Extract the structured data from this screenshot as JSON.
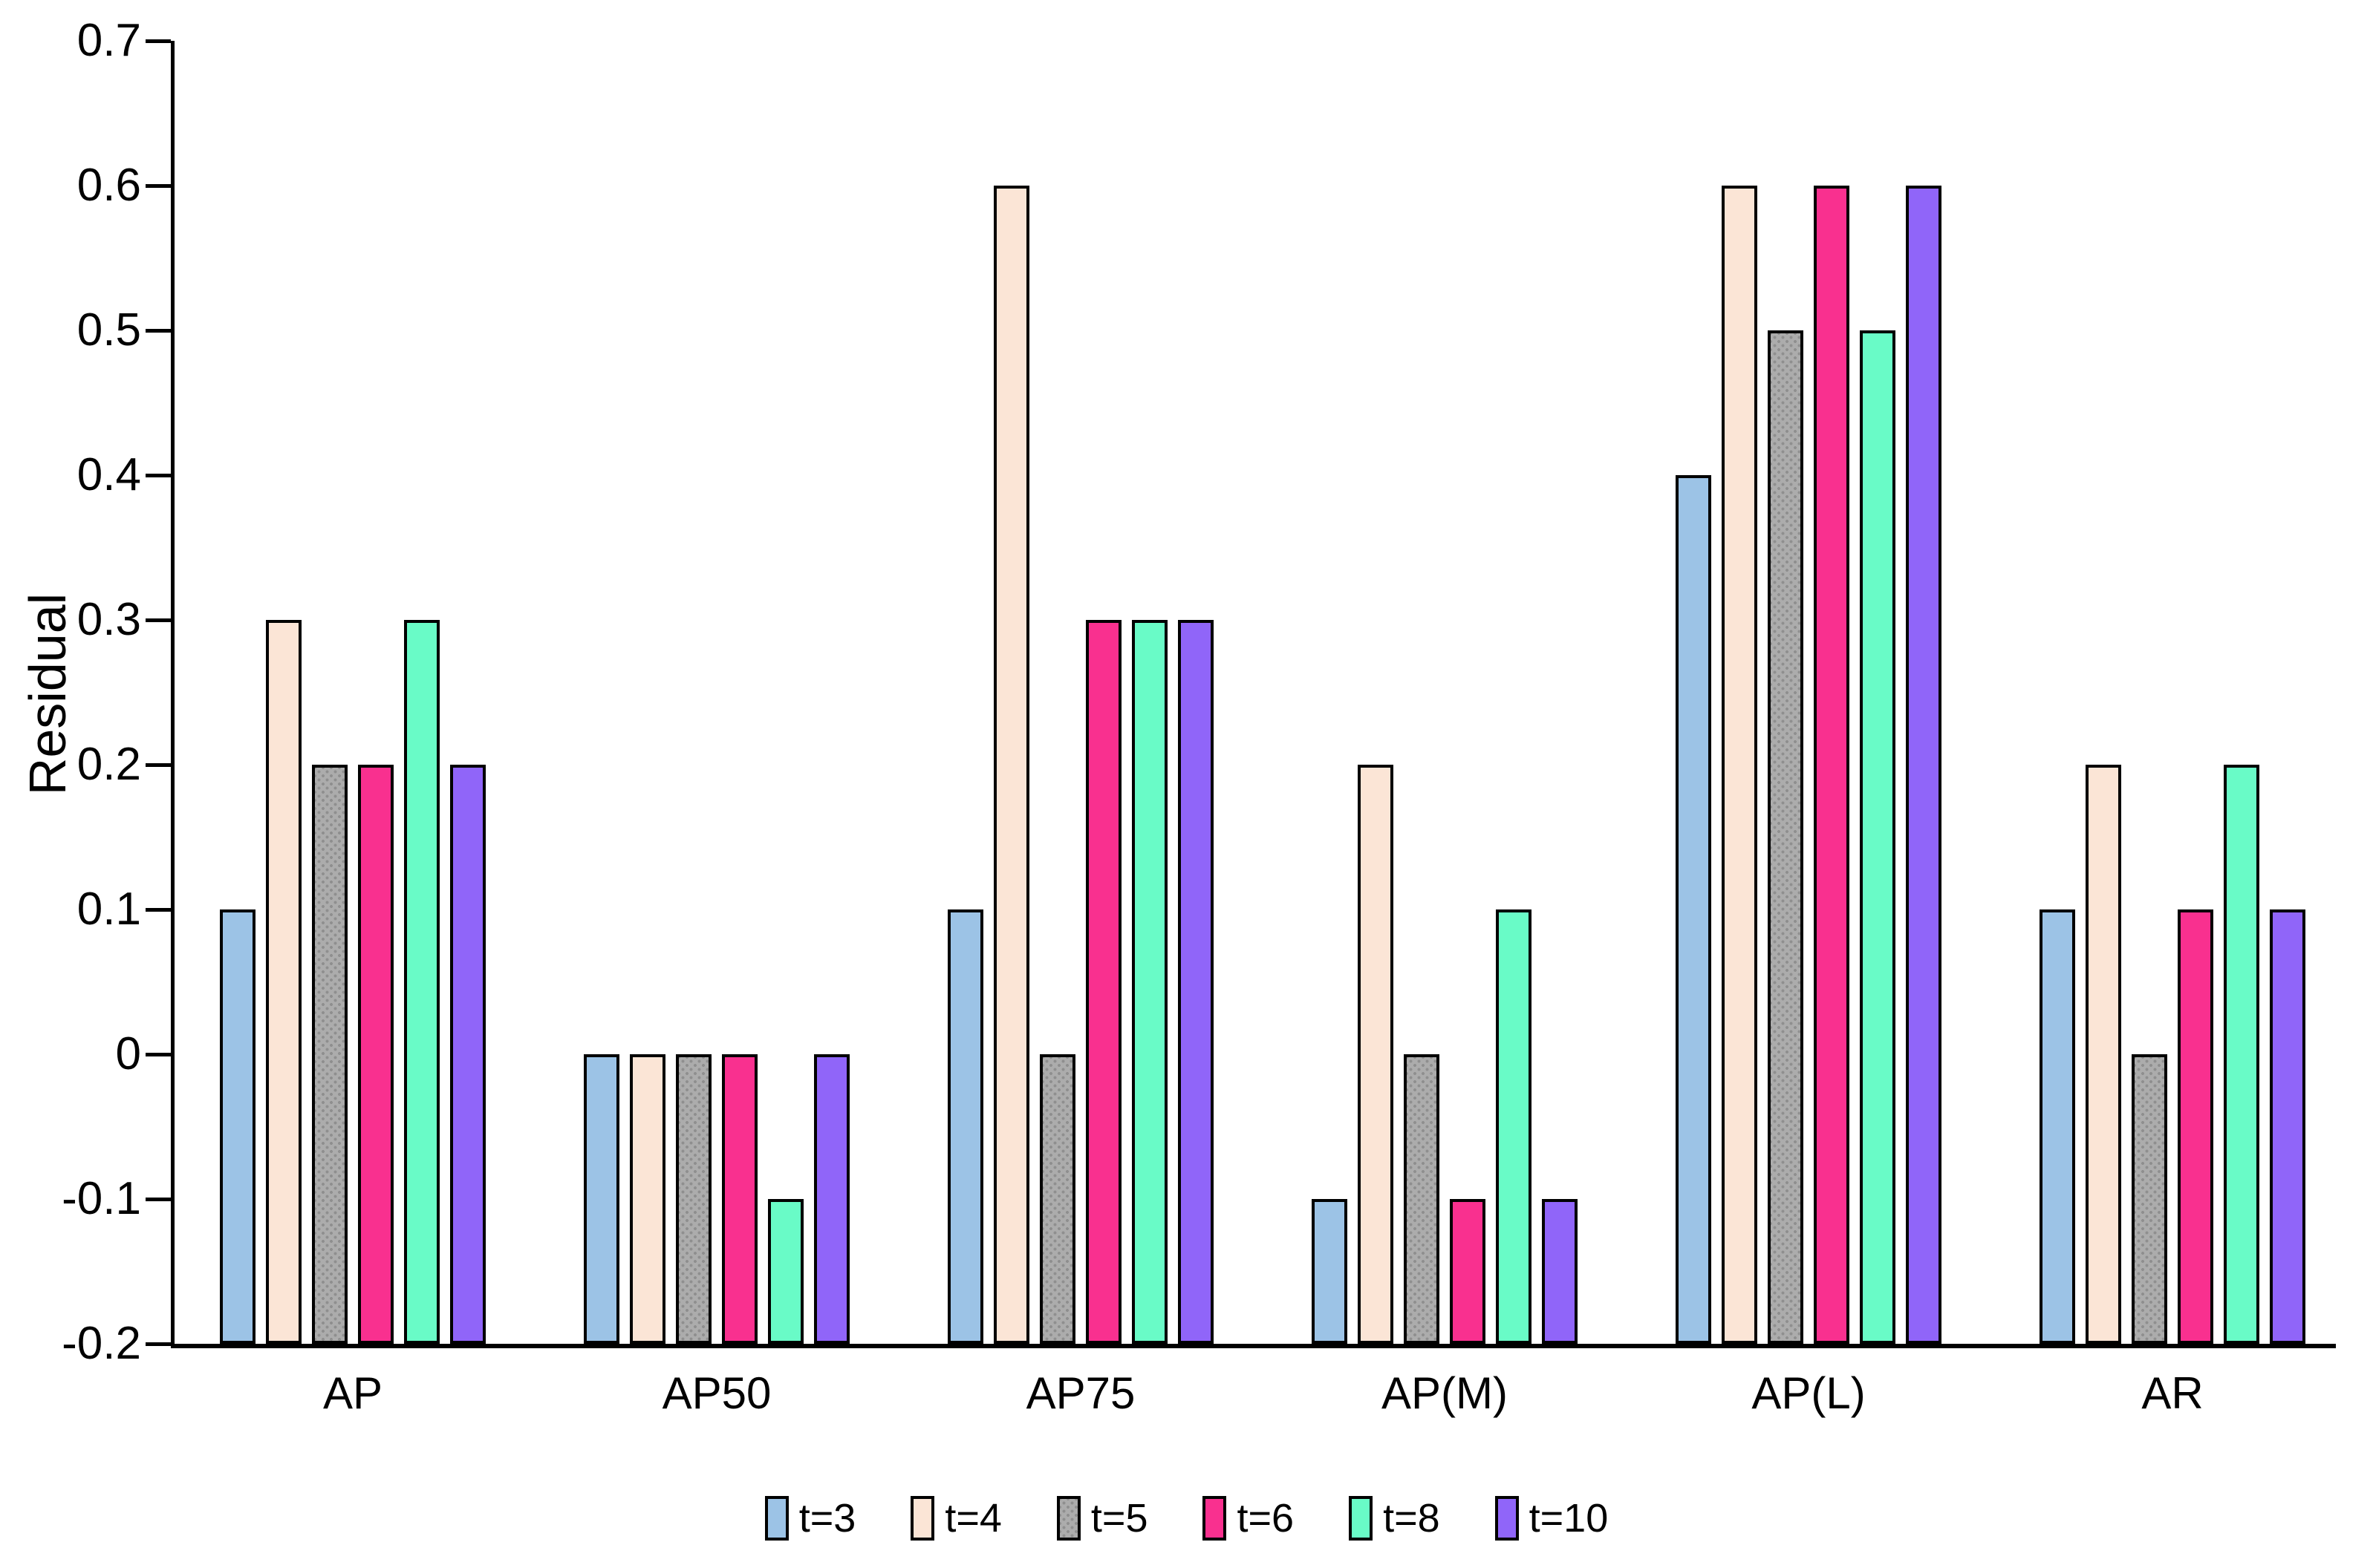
{
  "figure": {
    "background": "#FFFFFF",
    "axis_color": "#000000",
    "bar_border_color": "#000000"
  },
  "chart_data": {
    "type": "bar",
    "title": "",
    "ylabel": "Residual",
    "xlabel": "",
    "categories": [
      "AP",
      "AP50",
      "AP75",
      "AP(M)",
      "AP(L)",
      "AR"
    ],
    "series": [
      {
        "name": "t=3",
        "color": "#9CC3E6",
        "pattern": "solid",
        "values": [
          0.1,
          0,
          0.1,
          -0.1,
          0.4,
          0.1
        ]
      },
      {
        "name": "t=4",
        "color": "#FBE5D6",
        "pattern": "solid",
        "values": [
          0.3,
          0,
          0.6,
          0.2,
          0.6,
          0.2
        ]
      },
      {
        "name": "t=5",
        "color": "#ACACAC",
        "pattern": "dots",
        "pattern_dot_color": "#8F8F8F",
        "values": [
          0.2,
          0,
          0,
          0,
          0.5,
          0
        ]
      },
      {
        "name": "t=6",
        "color": "#F9308F",
        "pattern": "solid",
        "values": [
          0.2,
          0,
          0.3,
          -0.1,
          0.6,
          0.1
        ]
      },
      {
        "name": "t=8",
        "color": "#69FBC7",
        "pattern": "solid",
        "values": [
          0.3,
          -0.1,
          0.3,
          0.1,
          0.5,
          0.2
        ]
      },
      {
        "name": "t=10",
        "color": "#9065F9",
        "pattern": "solid",
        "values": [
          0.2,
          0,
          0.3,
          -0.1,
          0.6,
          0.1
        ]
      }
    ],
    "ylim": [
      -0.2,
      0.7
    ],
    "ytick_step": 0.1,
    "ytick_labels": [
      "0.7",
      "0.6",
      "0.5",
      "0.4",
      "0.3",
      "0.2",
      "0.1",
      "0",
      "-0.1",
      "-0.2"
    ],
    "bar_base": -0.2,
    "grid": false,
    "legend_position": "bottom"
  }
}
